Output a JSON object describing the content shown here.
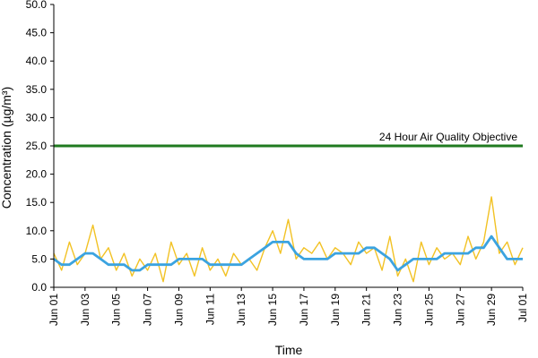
{
  "chart_data": {
    "type": "line",
    "title": "",
    "xlabel": "Time",
    "ylabel": "Concentration (µg/m³)",
    "ylim": [
      0,
      50
    ],
    "y_ticks": [
      "0.0",
      "5.0",
      "10.0",
      "15.0",
      "20.0",
      "25.0",
      "30.0",
      "35.0",
      "40.0",
      "45.0",
      "50.0"
    ],
    "x_range_days": [
      "Jun 01",
      "Jul 01"
    ],
    "x_ticks": [
      "Jun 01",
      "Jun 03",
      "Jun 05",
      "Jun 07",
      "Jun 09",
      "Jun 11",
      "Jun 13",
      "Jun 15",
      "Jun 17",
      "Jun 19",
      "Jun 21",
      "Jun 23",
      "Jun 25",
      "Jun 27",
      "Jun 29",
      "Jul 01"
    ],
    "grid": false,
    "objective": {
      "label": "24 Hour Air Quality Objective",
      "value": 25,
      "color": "#1f7a1f"
    },
    "series": [
      {
        "color": "#f2c224",
        "style": "hourly",
        "x": [
          "Jun 01",
          "Jun 01 12h",
          "Jun 02",
          "Jun 02 12h",
          "Jun 03",
          "Jun 03 12h",
          "Jun 04",
          "Jun 04 12h",
          "Jun 05",
          "Jun 05 12h",
          "Jun 06",
          "Jun 06 12h",
          "Jun 07",
          "Jun 07 12h",
          "Jun 08",
          "Jun 08 12h",
          "Jun 09",
          "Jun 09 12h",
          "Jun 10",
          "Jun 10 12h",
          "Jun 11",
          "Jun 11 12h",
          "Jun 12",
          "Jun 12 12h",
          "Jun 13",
          "Jun 13 12h",
          "Jun 14",
          "Jun 14 12h",
          "Jun 15",
          "Jun 15 12h",
          "Jun 16",
          "Jun 16 12h",
          "Jun 17",
          "Jun 17 12h",
          "Jun 18",
          "Jun 18 12h",
          "Jun 19",
          "Jun 19 12h",
          "Jun 20",
          "Jun 20 12h",
          "Jun 21",
          "Jun 21 12h",
          "Jun 22",
          "Jun 22 12h",
          "Jun 23",
          "Jun 23 12h",
          "Jun 24",
          "Jun 24 12h",
          "Jun 25",
          "Jun 25 12h",
          "Jun 26",
          "Jun 26 12h",
          "Jun 27",
          "Jun 27 12h",
          "Jun 28",
          "Jun 28 12h",
          "Jun 29",
          "Jun 29 12h",
          "Jun 30",
          "Jun 30 12h",
          "Jul 01"
        ],
        "values": [
          6,
          3,
          8,
          4,
          6,
          11,
          5,
          7,
          3,
          6,
          2,
          5,
          3,
          6,
          1,
          8,
          4,
          6,
          2,
          7,
          3,
          5,
          2,
          6,
          4,
          5,
          3,
          7,
          10,
          6,
          12,
          5,
          7,
          6,
          8,
          5,
          7,
          6,
          4,
          8,
          6,
          7,
          3,
          9,
          2,
          5,
          1,
          8,
          4,
          7,
          5,
          6,
          4,
          9,
          5,
          8,
          16,
          6,
          8,
          4,
          7
        ]
      },
      {
        "color": "#3ba3e0",
        "style": "running-24h",
        "x": [
          "Jun 01",
          "Jun 01 12h",
          "Jun 02",
          "Jun 02 12h",
          "Jun 03",
          "Jun 03 12h",
          "Jun 04",
          "Jun 04 12h",
          "Jun 05",
          "Jun 05 12h",
          "Jun 06",
          "Jun 06 12h",
          "Jun 07",
          "Jun 07 12h",
          "Jun 08",
          "Jun 08 12h",
          "Jun 09",
          "Jun 09 12h",
          "Jun 10",
          "Jun 10 12h",
          "Jun 11",
          "Jun 11 12h",
          "Jun 12",
          "Jun 12 12h",
          "Jun 13",
          "Jun 13 12h",
          "Jun 14",
          "Jun 14 12h",
          "Jun 15",
          "Jun 15 12h",
          "Jun 16",
          "Jun 16 12h",
          "Jun 17",
          "Jun 17 12h",
          "Jun 18",
          "Jun 18 12h",
          "Jun 19",
          "Jun 19 12h",
          "Jun 20",
          "Jun 20 12h",
          "Jun 21",
          "Jun 21 12h",
          "Jun 22",
          "Jun 22 12h",
          "Jun 23",
          "Jun 23 12h",
          "Jun 24",
          "Jun 24 12h",
          "Jun 25",
          "Jun 25 12h",
          "Jun 26",
          "Jun 26 12h",
          "Jun 27",
          "Jun 27 12h",
          "Jun 28",
          "Jun 28 12h",
          "Jun 29",
          "Jun 29 12h",
          "Jun 30",
          "Jun 30 12h",
          "Jul 01"
        ],
        "values": [
          5,
          4,
          4,
          5,
          6,
          6,
          5,
          4,
          4,
          4,
          3,
          3,
          4,
          4,
          4,
          4,
          5,
          5,
          5,
          5,
          4,
          4,
          4,
          4,
          4,
          5,
          6,
          7,
          8,
          8,
          8,
          6,
          5,
          5,
          5,
          5,
          6,
          6,
          6,
          6,
          7,
          7,
          6,
          5,
          3,
          4,
          5,
          5,
          5,
          5,
          6,
          6,
          6,
          6,
          7,
          7,
          9,
          7,
          5,
          5,
          5
        ]
      }
    ]
  }
}
